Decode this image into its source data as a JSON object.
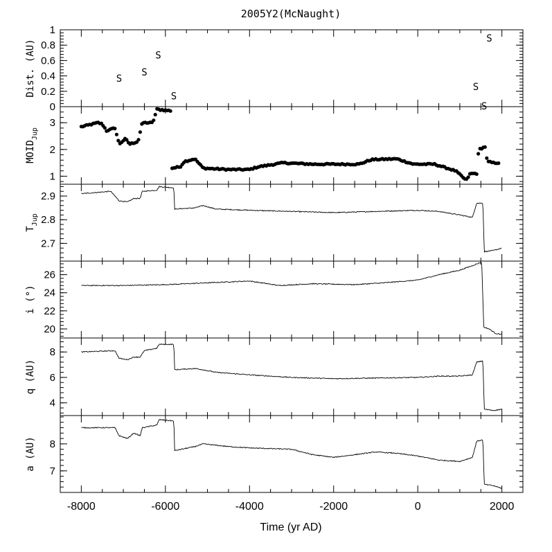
{
  "chart_data": {
    "title": "2005Y2(McNaught)",
    "xlabel": "Time (yr AD)",
    "xlim": [
      -8500,
      2500
    ],
    "xticks": [
      -8000,
      -6000,
      -4000,
      -2000,
      0,
      2000
    ],
    "xtick_labels": [
      "-8000",
      "-6000",
      "-4000",
      "-2000",
      "0",
      "2000"
    ],
    "panels": [
      {
        "id": "dist",
        "type": "scatter",
        "ylabel_main": "Dist. (AU)",
        "ylim": [
          0,
          1
        ],
        "yticks": [
          0,
          0.2,
          0.4,
          0.6,
          0.8,
          1
        ],
        "ytick_labels": [
          "0",
          "0.2",
          "0.4",
          "0.6",
          "0.8",
          "1"
        ],
        "marker": "S",
        "points": [
          {
            "x": -7100,
            "y": 0.37,
            "label": "S"
          },
          {
            "x": -6500,
            "y": 0.45,
            "label": "S"
          },
          {
            "x": -6170,
            "y": 0.67,
            "label": "S"
          },
          {
            "x": -5800,
            "y": 0.14,
            "label": "S"
          },
          {
            "x": 1380,
            "y": 0.26,
            "label": "S"
          },
          {
            "x": 1580,
            "y": 0.01,
            "label": "S"
          },
          {
            "x": 1700,
            "y": 0.89,
            "label": "S"
          }
        ]
      },
      {
        "id": "moid",
        "type": "scatter",
        "ylabel_main": "MOID",
        "ylabel_sub": "Jup",
        "ylim": [
          0.7,
          3.6
        ],
        "yticks": [
          1,
          2,
          3
        ],
        "ytick_labels": [
          "1",
          "2",
          "3"
        ],
        "knots": [
          [
            -8000,
            2.85
          ],
          [
            -7600,
            3.0
          ],
          [
            -7500,
            2.95
          ],
          [
            -7400,
            2.7
          ],
          [
            -7200,
            2.8
          ],
          [
            -7100,
            2.2
          ],
          [
            -6950,
            2.4
          ],
          [
            -6850,
            2.2
          ],
          [
            -6650,
            2.3
          ],
          [
            -6550,
            3.0
          ],
          [
            -6300,
            3.0
          ],
          [
            -6200,
            3.5
          ],
          [
            -5880,
            3.45
          ],
          [
            -5850,
            1.3
          ],
          [
            -5650,
            1.35
          ],
          [
            -5550,
            1.55
          ],
          [
            -5300,
            1.65
          ],
          [
            -5100,
            1.3
          ],
          [
            -4500,
            1.25
          ],
          [
            -4000,
            1.25
          ],
          [
            -3800,
            1.35
          ],
          [
            -3200,
            1.5
          ],
          [
            -2500,
            1.45
          ],
          [
            -2000,
            1.45
          ],
          [
            -1400,
            1.45
          ],
          [
            -1100,
            1.62
          ],
          [
            -500,
            1.65
          ],
          [
            -100,
            1.45
          ],
          [
            400,
            1.45
          ],
          [
            700,
            1.3
          ],
          [
            900,
            1.2
          ],
          [
            1150,
            0.85
          ],
          [
            1250,
            1.1
          ],
          [
            1400,
            1.1
          ],
          [
            1450,
            2.0
          ],
          [
            1600,
            2.1
          ],
          [
            1650,
            1.55
          ],
          [
            1800,
            1.5
          ],
          [
            1950,
            1.5
          ]
        ]
      },
      {
        "id": "tjup",
        "type": "line",
        "ylabel_main": "T",
        "ylabel_sub": "Jup",
        "ylim": [
          2.625,
          2.95
        ],
        "yticks": [
          2.7,
          2.8,
          2.9
        ],
        "ytick_labels": [
          "2.7",
          "2.8",
          "2.9"
        ],
        "knots": [
          [
            -8000,
            2.91
          ],
          [
            -7300,
            2.92
          ],
          [
            -7200,
            2.9
          ],
          [
            -7100,
            2.88
          ],
          [
            -6900,
            2.875
          ],
          [
            -6750,
            2.89
          ],
          [
            -6600,
            2.89
          ],
          [
            -6550,
            2.92
          ],
          [
            -6200,
            2.925
          ],
          [
            -6150,
            2.94
          ],
          [
            -5800,
            2.935
          ],
          [
            -5780,
            2.845
          ],
          [
            -5300,
            2.85
          ],
          [
            -5100,
            2.86
          ],
          [
            -4800,
            2.845
          ],
          [
            -4000,
            2.84
          ],
          [
            -3000,
            2.835
          ],
          [
            -2000,
            2.83
          ],
          [
            -1000,
            2.835
          ],
          [
            0,
            2.84
          ],
          [
            500,
            2.835
          ],
          [
            1000,
            2.82
          ],
          [
            1300,
            2.81
          ],
          [
            1400,
            2.87
          ],
          [
            1550,
            2.87
          ],
          [
            1580,
            2.665
          ],
          [
            1800,
            2.67
          ],
          [
            2000,
            2.68
          ]
        ]
      },
      {
        "id": "incl",
        "type": "line",
        "ylabel_main": "i (°)",
        "ylim": [
          19,
          27.5
        ],
        "yticks": [
          20,
          22,
          24,
          26
        ],
        "ytick_labels": [
          "20",
          "22",
          "24",
          "26"
        ],
        "knots": [
          [
            -8000,
            24.8
          ],
          [
            -7000,
            24.8
          ],
          [
            -6000,
            24.9
          ],
          [
            -5000,
            25.1
          ],
          [
            -4000,
            25.3
          ],
          [
            -3300,
            24.8
          ],
          [
            -2500,
            25.0
          ],
          [
            -1500,
            24.9
          ],
          [
            -800,
            25.1
          ],
          [
            0,
            25.4
          ],
          [
            500,
            26.0
          ],
          [
            1000,
            26.5
          ],
          [
            1300,
            27.0
          ],
          [
            1520,
            27.4
          ],
          [
            1570,
            20.2
          ],
          [
            1700,
            20.0
          ],
          [
            1850,
            19.5
          ],
          [
            2000,
            19.4
          ]
        ]
      },
      {
        "id": "q",
        "type": "line",
        "ylabel_main": "q (AU)",
        "ylim": [
          3,
          9.1
        ],
        "yticks": [
          4,
          6,
          8
        ],
        "ytick_labels": [
          "4",
          "6",
          "8"
        ],
        "knots": [
          [
            -8000,
            8.0
          ],
          [
            -7200,
            8.1
          ],
          [
            -7100,
            7.5
          ],
          [
            -6900,
            7.4
          ],
          [
            -6750,
            7.6
          ],
          [
            -6600,
            7.6
          ],
          [
            -6500,
            8.1
          ],
          [
            -6200,
            8.3
          ],
          [
            -6150,
            8.6
          ],
          [
            -5800,
            8.6
          ],
          [
            -5780,
            6.6
          ],
          [
            -5300,
            6.7
          ],
          [
            -5100,
            6.6
          ],
          [
            -4800,
            6.4
          ],
          [
            -4000,
            6.2
          ],
          [
            -3000,
            6.0
          ],
          [
            -2000,
            5.9
          ],
          [
            -1000,
            5.95
          ],
          [
            0,
            6.0
          ],
          [
            500,
            6.1
          ],
          [
            1000,
            6.1
          ],
          [
            1300,
            6.2
          ],
          [
            1400,
            7.2
          ],
          [
            1550,
            7.3
          ],
          [
            1580,
            3.5
          ],
          [
            1800,
            3.4
          ],
          [
            2000,
            3.5
          ]
        ]
      },
      {
        "id": "a",
        "type": "line",
        "ylabel_main": "a (AU)",
        "ylim": [
          6.2,
          9.05
        ],
        "yticks": [
          7,
          8
        ],
        "ytick_labels": [
          "7",
          "8"
        ],
        "knots": [
          [
            -8000,
            8.6
          ],
          [
            -7200,
            8.6
          ],
          [
            -7100,
            8.3
          ],
          [
            -6900,
            8.2
          ],
          [
            -6750,
            8.4
          ],
          [
            -6600,
            8.3
          ],
          [
            -6550,
            8.6
          ],
          [
            -6200,
            8.7
          ],
          [
            -6150,
            8.9
          ],
          [
            -5800,
            8.85
          ],
          [
            -5780,
            7.75
          ],
          [
            -5300,
            7.9
          ],
          [
            -5100,
            8.0
          ],
          [
            -4500,
            7.9
          ],
          [
            -4000,
            7.85
          ],
          [
            -3000,
            7.8
          ],
          [
            -2500,
            7.6
          ],
          [
            -2000,
            7.5
          ],
          [
            -1500,
            7.6
          ],
          [
            -1000,
            7.7
          ],
          [
            -500,
            7.65
          ],
          [
            0,
            7.55
          ],
          [
            500,
            7.4
          ],
          [
            1000,
            7.35
          ],
          [
            1300,
            7.5
          ],
          [
            1400,
            8.1
          ],
          [
            1550,
            8.15
          ],
          [
            1580,
            6.5
          ],
          [
            1800,
            6.45
          ],
          [
            2000,
            6.35
          ]
        ]
      }
    ]
  }
}
